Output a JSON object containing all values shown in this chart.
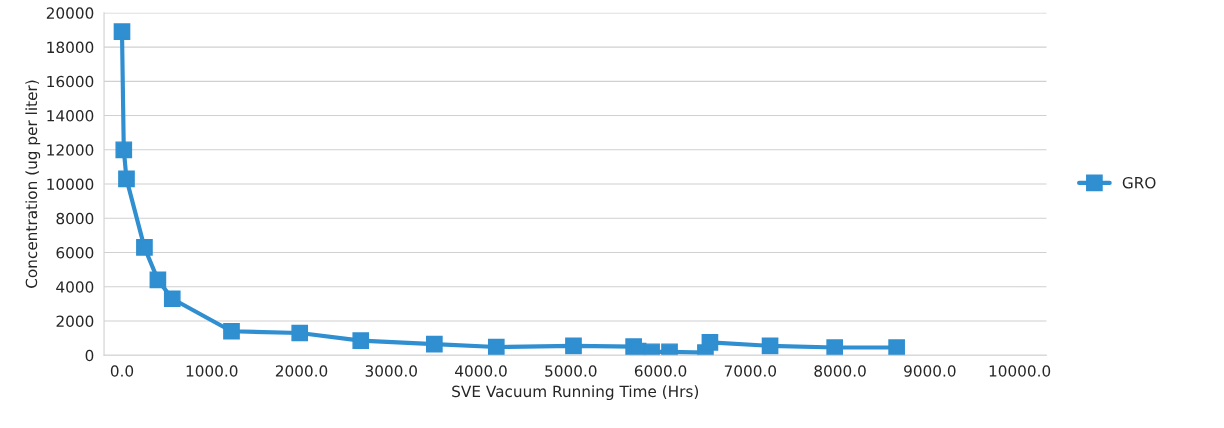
{
  "chart_data": {
    "type": "line",
    "xlabel": "SVE Vacuum Running Time (Hrs)",
    "ylabel": "Concentration (ug per liter)",
    "x": [
      0,
      20,
      50,
      250,
      400,
      560,
      1220,
      1980,
      2660,
      3480,
      4170,
      5030,
      5700,
      5750,
      5900,
      6100,
      6500,
      6550,
      7220,
      7940,
      8630
    ],
    "series": [
      {
        "name": "GRO",
        "color": "#2f8fd0",
        "values": [
          18900,
          12000,
          10300,
          6300,
          4400,
          3300,
          1400,
          1300,
          850,
          650,
          480,
          550,
          500,
          250,
          200,
          200,
          150,
          750,
          550,
          450,
          450
        ]
      }
    ],
    "xlim": [
      -200,
      10300
    ],
    "xticks": [
      {
        "value": 0,
        "label": "0.0"
      },
      {
        "value": 1000,
        "label": "1000.0"
      },
      {
        "value": 2000,
        "label": "2000.0"
      },
      {
        "value": 3000,
        "label": "3000.0"
      },
      {
        "value": 4000,
        "label": "4000.0"
      },
      {
        "value": 5000,
        "label": "5000.0"
      },
      {
        "value": 6000,
        "label": "6000.0"
      },
      {
        "value": 7000,
        "label": "7000.0"
      },
      {
        "value": 8000,
        "label": "8000.0"
      },
      {
        "value": 9000,
        "label": "9000.0"
      },
      {
        "value": 10000,
        "label": "10000.0"
      }
    ],
    "ylim": [
      0,
      20000
    ],
    "yticks": [
      0,
      2000,
      4000,
      6000,
      8000,
      10000,
      12000,
      14000,
      16000,
      18000,
      20000
    ],
    "grid": "y",
    "legend": "right",
    "marker": "square",
    "line_style": "solid"
  }
}
